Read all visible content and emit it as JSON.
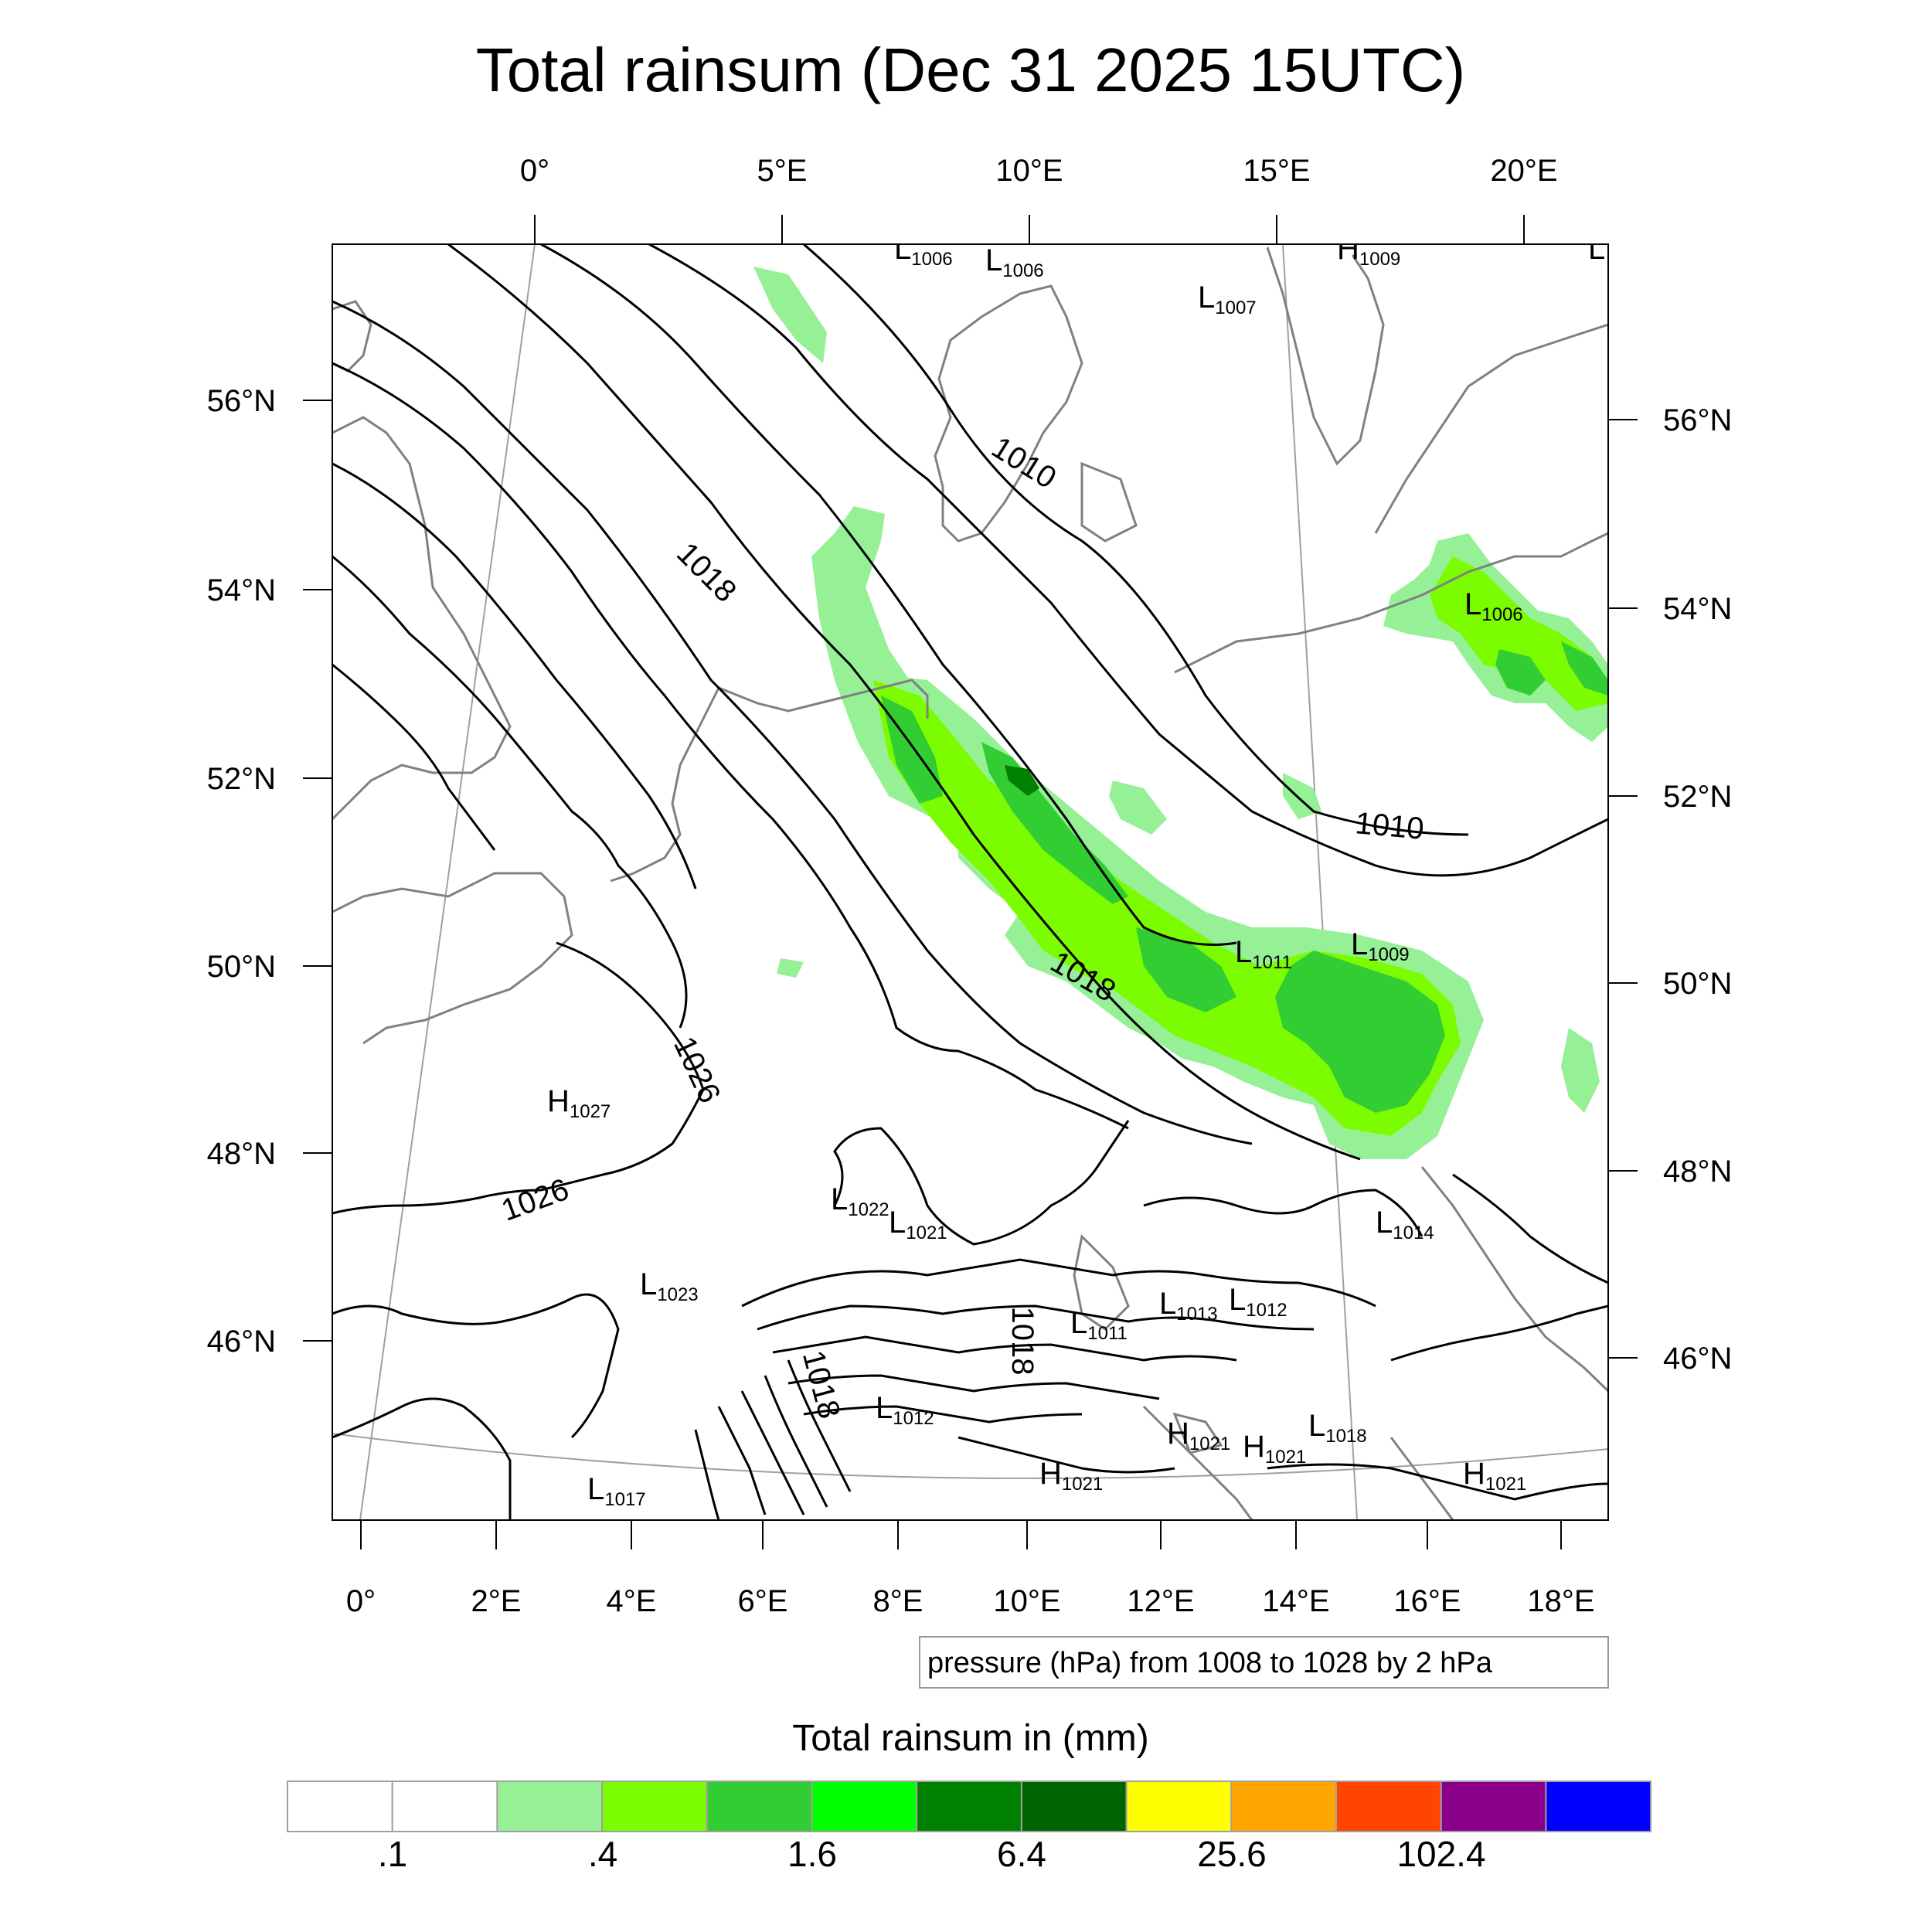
{
  "title": "Total rainsum (Dec 31 2025 15UTC)",
  "map": {
    "top_lon_labels": [
      "0°",
      "5°E",
      "10°E",
      "15°E",
      "20°E"
    ],
    "bottom_lon_labels": [
      "0°",
      "2°E",
      "4°E",
      "6°E",
      "8°E",
      "10°E",
      "12°E",
      "14°E",
      "16°E",
      "18°E"
    ],
    "left_lat_labels": [
      "56°N",
      "54°N",
      "52°N",
      "50°N",
      "48°N",
      "46°N"
    ],
    "right_lat_labels": [
      "56°N",
      "54°N",
      "52°N",
      "50°N",
      "48°N",
      "46°N"
    ],
    "contour_note": "pressure (hPa) from 1008 to 1028 by 2 hPa",
    "pressure_centers": [
      {
        "type": "L",
        "value": "1006"
      },
      {
        "type": "L",
        "value": "1006"
      },
      {
        "type": "H",
        "value": "1009"
      },
      {
        "type": "L",
        "value": ""
      },
      {
        "type": "L",
        "value": "1007"
      },
      {
        "type": "L",
        "value": "1006"
      },
      {
        "type": "L",
        "value": "1011"
      },
      {
        "type": "L",
        "value": "1009"
      },
      {
        "type": "H",
        "value": "1027"
      },
      {
        "type": "L",
        "value": "1022"
      },
      {
        "type": "L",
        "value": "1021"
      },
      {
        "type": "L",
        "value": "1014"
      },
      {
        "type": "L",
        "value": "1023"
      },
      {
        "type": "L",
        "value": "1013"
      },
      {
        "type": "L",
        "value": "1012"
      },
      {
        "type": "L",
        "value": "1011"
      },
      {
        "type": "L",
        "value": "1012"
      },
      {
        "type": "H",
        "value": "1021"
      },
      {
        "type": "H",
        "value": "1021"
      },
      {
        "type": "L",
        "value": "1018"
      },
      {
        "type": "H",
        "value": "1021"
      },
      {
        "type": "H",
        "value": "1021"
      },
      {
        "type": "L",
        "value": "1017"
      }
    ],
    "contour_labels": [
      "1010",
      "1018",
      "1010",
      "1018",
      "1026",
      "1026",
      "1018",
      "1018"
    ]
  },
  "colorbar": {
    "title": "Total rainsum in (mm)",
    "colors": [
      "#ffffff",
      "#ffffff",
      "#96f096",
      "#7cfc00",
      "#32cd32",
      "#00ff00",
      "#008000",
      "#006400",
      "#ffff00",
      "#ffa500",
      "#ff4500",
      "#8b008b",
      "#0000ff"
    ],
    "tick_labels": [
      ".1",
      ".4",
      "1.6",
      "6.4",
      "25.6",
      "102.4"
    ]
  }
}
